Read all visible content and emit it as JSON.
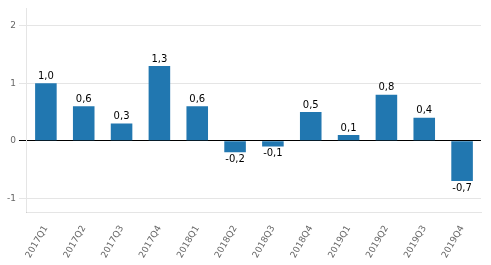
{
  "chart_data": {
    "type": "bar",
    "categories": [
      "2017Q1",
      "2017Q2",
      "2017Q3",
      "2017Q4",
      "2018Q1",
      "2018Q2",
      "2018Q3",
      "2018Q4",
      "2019Q1",
      "2019Q2",
      "2019Q3",
      "2019Q4"
    ],
    "values": [
      1.0,
      0.6,
      0.3,
      1.3,
      0.6,
      -0.2,
      -0.1,
      0.5,
      0.1,
      0.8,
      0.4,
      -0.7
    ],
    "value_labels": [
      "1,0",
      "0,6",
      "0,3",
      "1,3",
      "0,6",
      "-0,2",
      "-0,1",
      "0,5",
      "0,1",
      "0,8",
      "0,4",
      "-0,7"
    ],
    "color": "#2177b0",
    "ylim": [
      -1.25,
      2.3
    ],
    "yticks": [
      -1,
      0,
      1,
      2
    ],
    "grid": true,
    "data_labels": true
  }
}
